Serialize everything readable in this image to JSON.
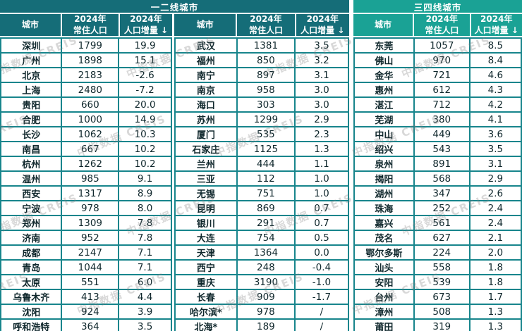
{
  "chart_data": {
    "type": "table",
    "watermark": "中指数据 CREIS",
    "titles": {
      "tier12": "一二线城市",
      "tier34": "三四线城市"
    },
    "columns": {
      "city": "城市",
      "year": "2024年",
      "population": "常住人口",
      "growth": "人口增量",
      "sort_arrow": "↓"
    },
    "units_note": "population in 万人 (implied), growth sorted descending",
    "groups": [
      {
        "tier": "一二线城市",
        "rows": [
          [
            "深圳",
            "1799",
            "19.9"
          ],
          [
            "广州",
            "1898",
            "15.1"
          ],
          [
            "北京",
            "2183",
            "-2.6"
          ],
          [
            "上海",
            "2480",
            "-7.2"
          ],
          [
            "贵阳",
            "660",
            "20.0"
          ],
          [
            "合肥",
            "1000",
            "14.9"
          ],
          [
            "长沙",
            "1062",
            "10.3"
          ],
          [
            "南昌",
            "667",
            "10.2"
          ],
          [
            "杭州",
            "1262",
            "10.2"
          ],
          [
            "温州",
            "985",
            "9.1"
          ],
          [
            "西安",
            "1317",
            "8.9"
          ],
          [
            "宁波",
            "978",
            "8.0"
          ],
          [
            "郑州",
            "1309",
            "7.8"
          ],
          [
            "济南",
            "952",
            "7.8"
          ],
          [
            "成都",
            "2147",
            "7.1"
          ],
          [
            "青岛",
            "1044",
            "7.1"
          ],
          [
            "太原",
            "551",
            "6.0"
          ],
          [
            "乌鲁木齐",
            "413",
            "4.4"
          ],
          [
            "沈阳",
            "924",
            "3.9"
          ],
          [
            "呼和浩特",
            "364",
            "3.5"
          ]
        ]
      },
      {
        "tier": "一二线城市",
        "rows": [
          [
            "武汉",
            "1381",
            "3.5"
          ],
          [
            "福州",
            "850",
            "3.2"
          ],
          [
            "南宁",
            "897",
            "3.1"
          ],
          [
            "南京",
            "958",
            "3.0"
          ],
          [
            "海口",
            "303",
            "3.0"
          ],
          [
            "苏州",
            "1299",
            "2.9"
          ],
          [
            "厦门",
            "535",
            "2.3"
          ],
          [
            "石家庄",
            "1125",
            "1.3"
          ],
          [
            "兰州",
            "444",
            "1.1"
          ],
          [
            "三亚",
            "112",
            "1.0"
          ],
          [
            "无锡",
            "751",
            "1.0"
          ],
          [
            "昆明",
            "869",
            "0.7"
          ],
          [
            "银川",
            "291",
            "0.7"
          ],
          [
            "大连",
            "754",
            "0.5"
          ],
          [
            "天津",
            "1364",
            "0.0"
          ],
          [
            "西宁",
            "248",
            "-0.4"
          ],
          [
            "重庆",
            "3190",
            "-1.0"
          ],
          [
            "长春",
            "909",
            "-1.7"
          ],
          [
            "哈尔滨*",
            "978",
            "/"
          ],
          [
            "北海*",
            "189",
            "/"
          ]
        ]
      },
      {
        "tier": "三四线城市",
        "rows": [
          [
            "东莞",
            "1057",
            "8.5"
          ],
          [
            "佛山",
            "970",
            "8.4"
          ],
          [
            "金华",
            "721",
            "4.6"
          ],
          [
            "惠州",
            "612",
            "4.3"
          ],
          [
            "湛江",
            "712",
            "4.2"
          ],
          [
            "芜湖",
            "380",
            "4.1"
          ],
          [
            "中山",
            "449",
            "3.6"
          ],
          [
            "绍兴",
            "543",
            "3.5"
          ],
          [
            "泉州",
            "891",
            "3.1"
          ],
          [
            "揭阳",
            "568",
            "2.9"
          ],
          [
            "湖州",
            "347",
            "2.6"
          ],
          [
            "珠海",
            "252",
            "2.4"
          ],
          [
            "嘉兴",
            "561",
            "2.4"
          ],
          [
            "茂名",
            "627",
            "2.1"
          ],
          [
            "鄂尔多斯",
            "224",
            "2.0"
          ],
          [
            "汕头",
            "558",
            "1.8"
          ],
          [
            "安阳",
            "539",
            "1.8"
          ],
          [
            "台州",
            "673",
            "1.7"
          ],
          [
            "漳州",
            "508",
            "1.3"
          ],
          [
            "莆田",
            "319",
            "1.3"
          ]
        ]
      }
    ],
    "colors": {
      "teal_dark": "#156d78",
      "teal_light": "#1aa295",
      "grid": "#17858c",
      "ink": "#0f272c"
    }
  }
}
